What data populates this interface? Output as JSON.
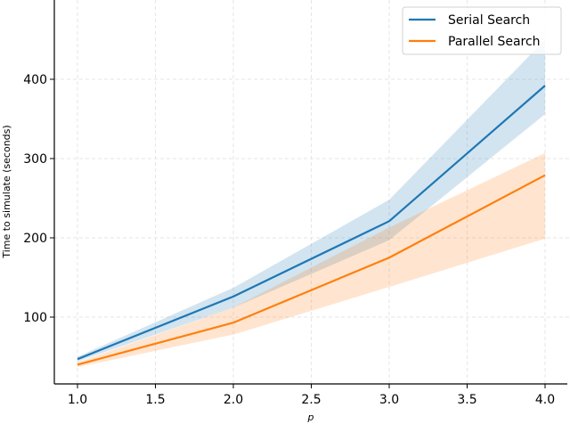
{
  "chart_data": {
    "type": "line",
    "title": "",
    "xlabel": "p",
    "ylabel": "Time to simulate (seconds)",
    "x": [
      1.0,
      2.0,
      3.0,
      4.0
    ],
    "xlim": [
      0.85,
      4.15
    ],
    "ylim": [
      16,
      500
    ],
    "xticks": [
      1.0,
      1.5,
      2.0,
      2.5,
      3.0,
      3.5,
      4.0
    ],
    "xtick_labels": [
      "1.0",
      "1.5",
      "2.0",
      "2.5",
      "3.0",
      "3.5",
      "4.0"
    ],
    "yticks": [
      100,
      200,
      300,
      400
    ],
    "ytick_labels": [
      "100",
      "200",
      "300",
      "400"
    ],
    "grid": true,
    "legend_position": "upper right",
    "series": [
      {
        "name": "Serial Search",
        "color": "#1f77b4",
        "values": [
          47,
          126,
          221,
          392
        ],
        "band_lower": [
          44,
          112,
          197,
          356
        ],
        "band_upper": [
          50,
          137,
          248,
          450
        ]
      },
      {
        "name": "Parallel Search",
        "color": "#ff7f0e",
        "values": [
          40,
          93,
          175,
          279
        ],
        "band_lower": [
          37,
          78,
          138,
          199
        ],
        "band_upper": [
          43,
          112,
          213,
          307
        ]
      }
    ]
  },
  "legend": {
    "items": [
      {
        "label": "Serial Search",
        "color": "#1f77b4"
      },
      {
        "label": "Parallel Search",
        "color": "#ff7f0e"
      }
    ]
  }
}
